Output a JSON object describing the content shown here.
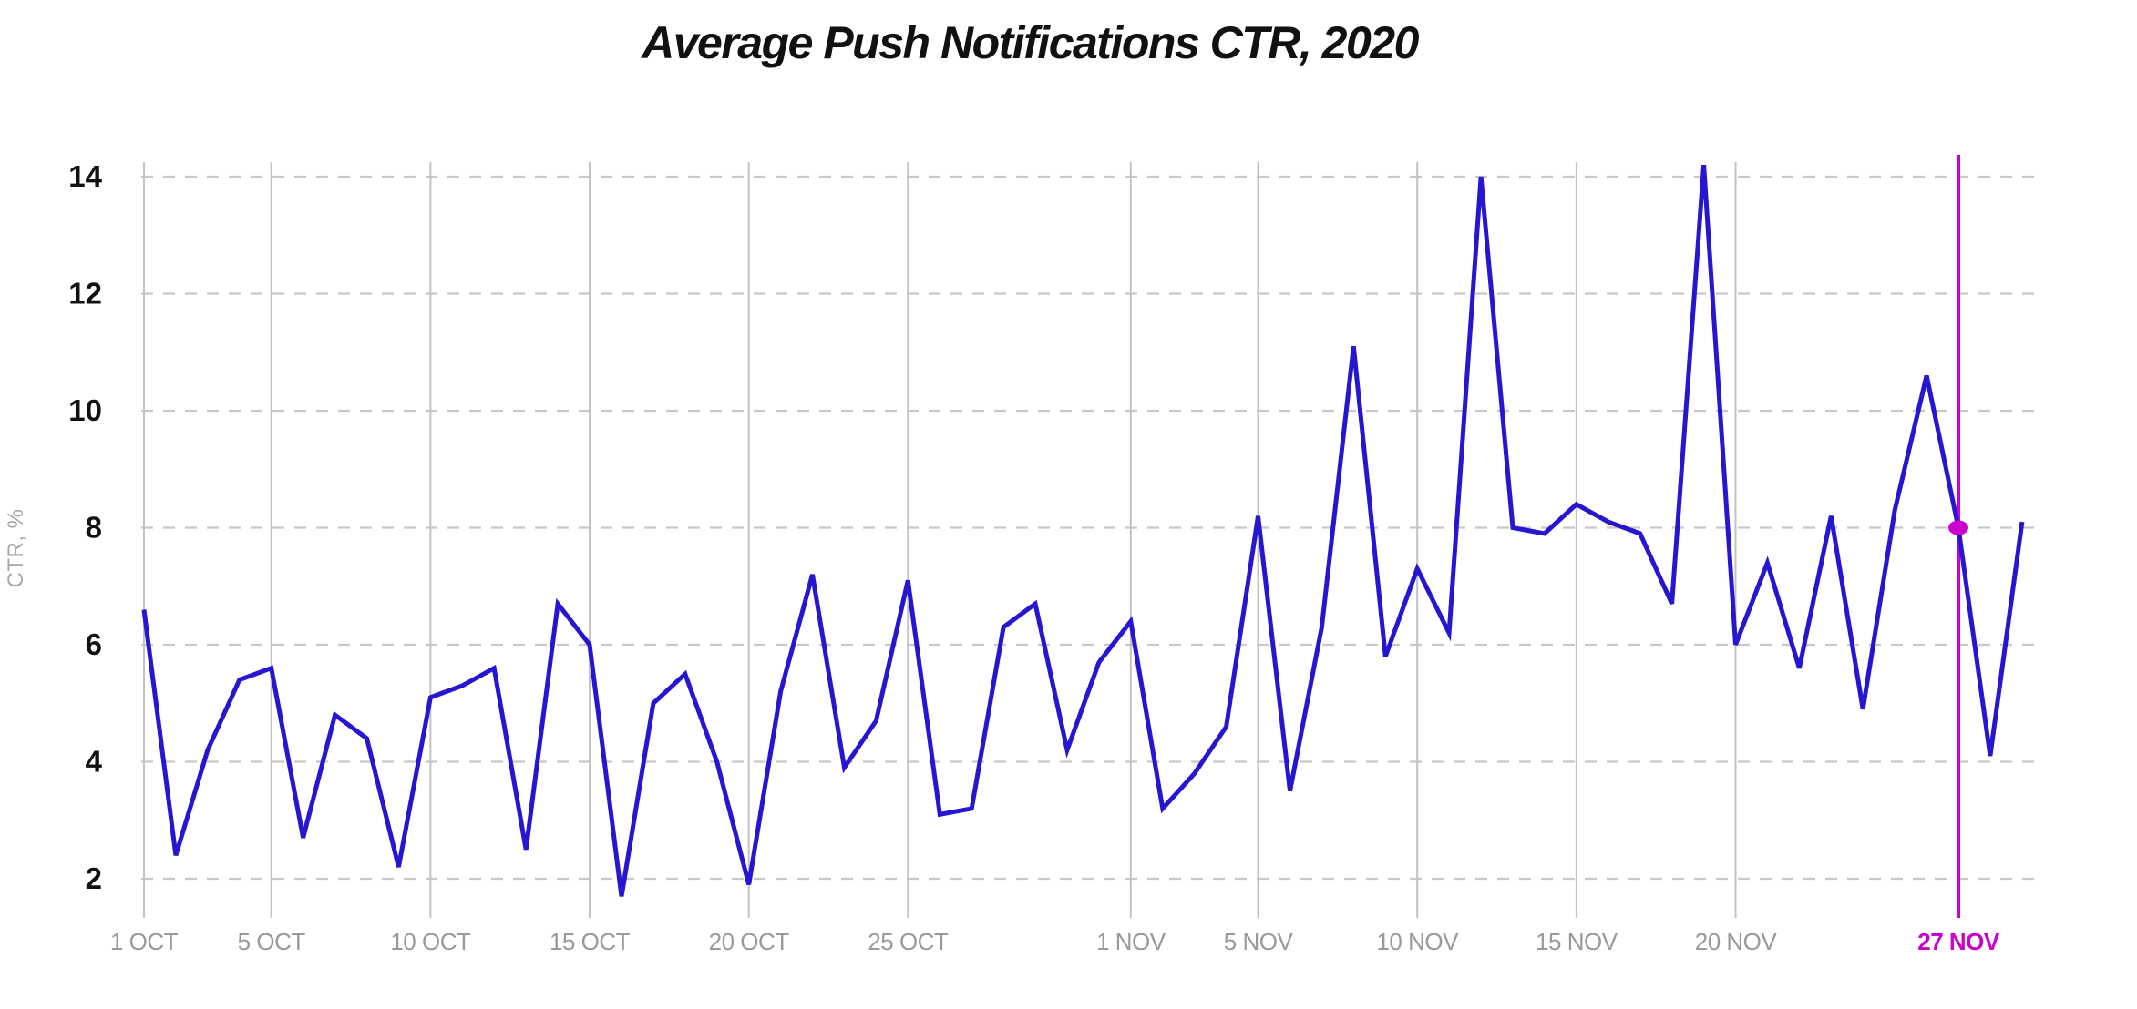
{
  "title": "Average Push Notifications CTR, 2020",
  "y_axis": {
    "unit_label": "CTR, %",
    "ticks": [
      "2",
      "4",
      "6",
      "8",
      "10",
      "12",
      "14"
    ]
  },
  "x_axis": {
    "ticks": [
      {
        "label": "1 OCT",
        "index": 0,
        "highlight": false
      },
      {
        "label": "5 OCT",
        "index": 4,
        "highlight": false
      },
      {
        "label": "10 OCT",
        "index": 9,
        "highlight": false
      },
      {
        "label": "15 OCT",
        "index": 14,
        "highlight": false
      },
      {
        "label": "20 OCT",
        "index": 19,
        "highlight": false
      },
      {
        "label": "25 OCT",
        "index": 24,
        "highlight": false
      },
      {
        "label": "1 NOV",
        "index": 31,
        "highlight": false
      },
      {
        "label": "5 NOV",
        "index": 35,
        "highlight": false
      },
      {
        "label": "10 NOV",
        "index": 40,
        "highlight": false
      },
      {
        "label": "15 NOV",
        "index": 45,
        "highlight": false
      },
      {
        "label": "20 NOV",
        "index": 50,
        "highlight": false
      },
      {
        "label": "27 NOV",
        "index": 57,
        "highlight": true
      }
    ]
  },
  "highlight": {
    "label": "27 NOV",
    "index": 57,
    "value": 8.0
  },
  "colors": {
    "line": "#2616d2",
    "highlight": "#cc00cc",
    "grid_solid": "#c2c2c2",
    "grid_dashed": "#c8c8c8",
    "x_tick_label": "#999999",
    "y_tick_label": "#111111",
    "axis_unit_label": "#a6a6a6",
    "title": "#111111",
    "background": "#ffffff"
  },
  "chart_data": {
    "type": "line",
    "title": "Average Push Notifications CTR, 2020",
    "xlabel": "",
    "ylabel": "CTR, %",
    "ylim": [
      1.5,
      14.5
    ],
    "grid": "horizontal dashed + vertical solid at labeled dates",
    "legend": "none",
    "x": [
      "1 Oct",
      "2 Oct",
      "3 Oct",
      "4 Oct",
      "5 Oct",
      "6 Oct",
      "7 Oct",
      "8 Oct",
      "9 Oct",
      "10 Oct",
      "11 Oct",
      "12 Oct",
      "13 Oct",
      "14 Oct",
      "15 Oct",
      "16 Oct",
      "17 Oct",
      "18 Oct",
      "19 Oct",
      "20 Oct",
      "21 Oct",
      "22 Oct",
      "23 Oct",
      "24 Oct",
      "25 Oct",
      "26 Oct",
      "27 Oct",
      "28 Oct",
      "29 Oct",
      "30 Oct",
      "31 Oct",
      "1 Nov",
      "2 Nov",
      "3 Nov",
      "4 Nov",
      "5 Nov",
      "6 Nov",
      "7 Nov",
      "8 Nov",
      "9 Nov",
      "10 Nov",
      "11 Nov",
      "12 Nov",
      "13 Nov",
      "14 Nov",
      "15 Nov",
      "16 Nov",
      "17 Nov",
      "18 Nov",
      "19 Nov",
      "20 Nov",
      "21 Nov",
      "22 Nov",
      "23 Nov",
      "24 Nov",
      "25 Nov",
      "26 Nov",
      "27 Nov",
      "28 Nov",
      "29 Nov"
    ],
    "values": [
      6.6,
      2.4,
      4.2,
      5.4,
      5.6,
      2.7,
      4.8,
      4.4,
      2.2,
      5.1,
      5.3,
      5.6,
      2.5,
      6.7,
      6.0,
      1.7,
      5.0,
      5.5,
      4.0,
      1.9,
      5.2,
      7.2,
      3.9,
      4.7,
      7.1,
      3.1,
      3.2,
      6.3,
      6.7,
      4.2,
      5.7,
      6.4,
      3.2,
      3.8,
      4.6,
      8.2,
      3.5,
      6.3,
      11.1,
      5.8,
      7.3,
      6.2,
      14.0,
      8.0,
      7.9,
      8.4,
      8.1,
      7.9,
      6.7,
      14.2,
      6.0,
      7.4,
      5.6,
      8.2,
      4.9,
      8.3,
      10.6,
      8.0,
      4.1,
      8.1
    ],
    "annotations": [
      {
        "type": "vline_with_point",
        "x": "27 Nov",
        "point_value": 8.0,
        "color": "#cc00cc"
      }
    ]
  }
}
